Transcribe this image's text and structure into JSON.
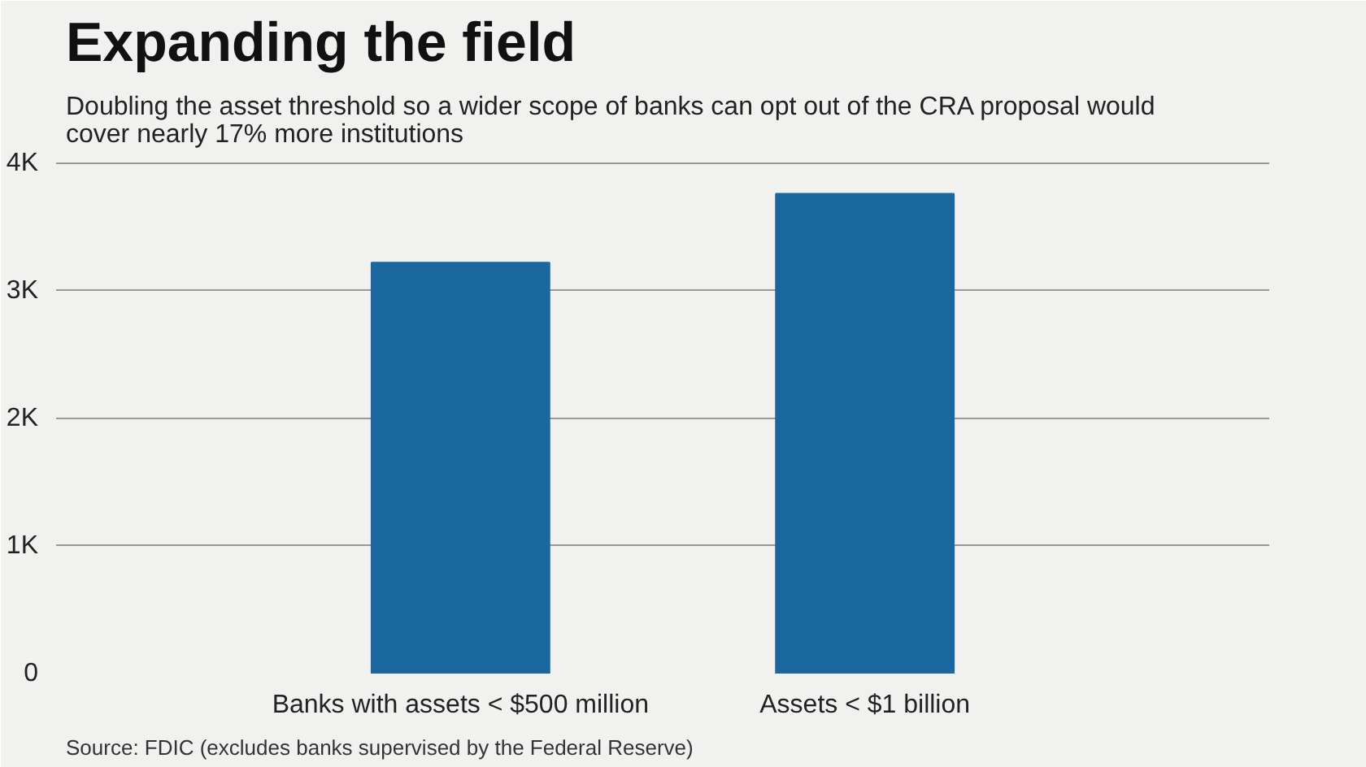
{
  "chart_data": {
    "type": "bar",
    "title": "Expanding the field",
    "subtitle": "Doubling the asset threshold so a wider scope of banks can opt out of the CRA proposal would cover nearly 17% more institutions",
    "categories": [
      "Banks with assets < $500 million",
      "Assets < $1 billion"
    ],
    "values": [
      3220,
      3760
    ],
    "color": "#1b679f",
    "ylim": [
      0,
      4050
    ],
    "yticks": [
      {
        "value": 0,
        "label": "0"
      },
      {
        "value": 1000,
        "label": "1K"
      },
      {
        "value": 2000,
        "label": "2K"
      },
      {
        "value": 3000,
        "label": "3K"
      },
      {
        "value": 4000,
        "label": "4K"
      }
    ],
    "grid": "y",
    "annotations": [
      "Source: FDIC (excludes banks supervised by the Federal Reserve)"
    ]
  }
}
